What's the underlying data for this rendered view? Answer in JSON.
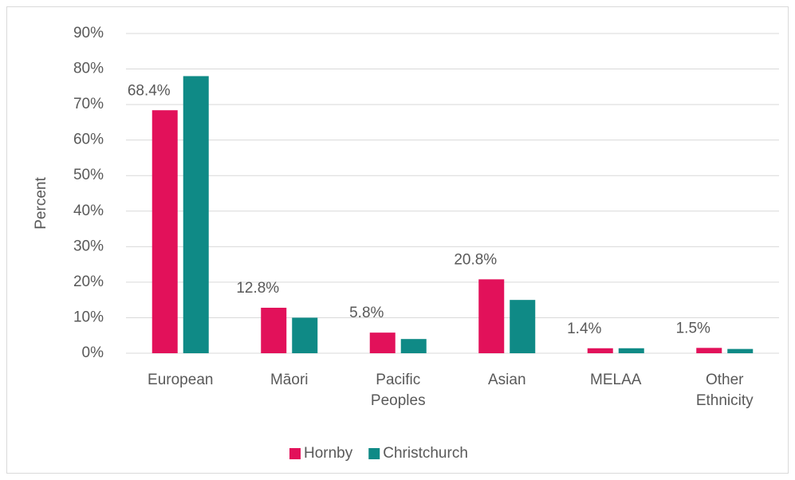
{
  "chart_data": {
    "type": "bar",
    "categories": [
      "European",
      "Māori",
      "Pacific Peoples",
      "Asian",
      "MELAA",
      "Other Ethnicity"
    ],
    "series": [
      {
        "name": "Hornby",
        "color": "#e2115a",
        "values": [
          68.4,
          12.8,
          5.8,
          20.8,
          1.4,
          1.5
        ],
        "value_labels": [
          "68.4%",
          "12.8%",
          "5.8%",
          "20.8%",
          "1.4%",
          "1.5%"
        ]
      },
      {
        "name": "Christchurch",
        "color": "#0f8a86",
        "values": [
          78,
          10,
          4,
          15,
          1.4,
          1.2
        ]
      }
    ],
    "y_label": "Percent",
    "ylim": [
      0,
      90
    ],
    "yticks": [
      {
        "value": 0,
        "label": "0%"
      },
      {
        "value": 10,
        "label": "10%"
      },
      {
        "value": 20,
        "label": "20%"
      },
      {
        "value": 30,
        "label": "30%"
      },
      {
        "value": 40,
        "label": "40%"
      },
      {
        "value": 50,
        "label": "50%"
      },
      {
        "value": 60,
        "label": "60%"
      },
      {
        "value": 70,
        "label": "70%"
      },
      {
        "value": 80,
        "label": "80%"
      },
      {
        "value": 90,
        "label": "90%"
      }
    ],
    "grid": true,
    "legend": "bottom"
  }
}
